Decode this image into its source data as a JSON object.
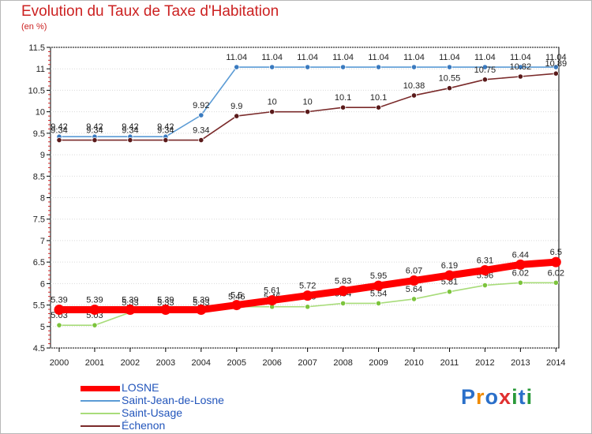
{
  "header": {
    "title": "Evolution du Taux de Taxe d'Habitation",
    "subtitle": "(en %)"
  },
  "logo": {
    "text": "Proxiti",
    "letters": [
      {
        "ch": "P",
        "color": "#2a6fc9"
      },
      {
        "ch": "r",
        "color": "#f08a00"
      },
      {
        "ch": "o",
        "color": "#2a6fc9"
      },
      {
        "ch": "x",
        "color": "#e03030"
      },
      {
        "ch": "i",
        "color": "#2a9a3a"
      },
      {
        "ch": "t",
        "color": "#2a6fc9"
      },
      {
        "ch": "i",
        "color": "#2a9a3a"
      }
    ]
  },
  "chart_data": {
    "type": "line",
    "title": "Evolution du Taux de Taxe d'Habitation",
    "subtitle": "(en %)",
    "ylim": [
      4.5,
      11.5
    ],
    "y_ticks": [
      "4.5",
      "5",
      "5.5",
      "6",
      "6.5",
      "7",
      "7.5",
      "8",
      "8.5",
      "9",
      "9.5",
      "10",
      "10.5",
      "11",
      "11.5"
    ],
    "categories": [
      "2000",
      "2001",
      "2002",
      "2003",
      "2004",
      "2005",
      "2006",
      "2007",
      "2008",
      "2009",
      "2010",
      "2011",
      "2012",
      "2013",
      "2014"
    ],
    "grid": "horizontal",
    "legend_position": "bottom-left",
    "series": [
      {
        "name": "Saint-Jean-de-Losne",
        "color": "#5b9bd5",
        "point_color": "#3a7abf",
        "labels": [
          "9.42",
          "9.42",
          "9.42",
          "9.42",
          "9.92",
          "11.04",
          "11.04",
          "11.04",
          "11.04",
          "11.04",
          "11.04",
          "11.04",
          "11.04",
          "11.04",
          "11.04"
        ],
        "values": [
          9.42,
          9.42,
          9.42,
          9.42,
          9.92,
          11.04,
          11.04,
          11.04,
          11.04,
          11.04,
          11.04,
          11.04,
          11.04,
          11.04,
          11.04
        ]
      },
      {
        "name": "Échenon",
        "color": "#7a2a2a",
        "point_color": "#5a1a1a",
        "labels": [
          "9.34",
          "9.34",
          "9.34",
          "9.34",
          "9.34",
          "9.9",
          "10",
          "10",
          "10.1",
          "10.1",
          "10.38",
          "10.55",
          "10.75",
          "10.82",
          "10.89"
        ],
        "values": [
          9.34,
          9.34,
          9.34,
          9.34,
          9.34,
          9.9,
          10,
          10,
          10.1,
          10.1,
          10.38,
          10.55,
          10.75,
          10.82,
          10.89
        ]
      },
      {
        "name": "Saint-Usage",
        "color": "#a8dc7a",
        "point_color": "#7cc43c",
        "labels": [
          "5.03",
          "5.03",
          "5.33",
          "5.33",
          "5.33",
          "5.46",
          "5.46",
          "5.46",
          "5.54",
          "5.54",
          "5.64",
          "5.81",
          "5.96",
          "6.02",
          "6.02"
        ],
        "values": [
          5.03,
          5.03,
          5.33,
          5.33,
          5.33,
          5.46,
          5.46,
          5.46,
          5.54,
          5.54,
          5.64,
          5.81,
          5.96,
          6.02,
          6.02
        ]
      },
      {
        "name": "LOSNE",
        "color": "#ff0000",
        "point_color": "#ff0000",
        "labels": [
          "5.39",
          "5.39",
          "5.39",
          "5.39",
          "5.39",
          "5.5",
          "5.61",
          "5.72",
          "5.83",
          "5.95",
          "6.07",
          "6.19",
          "6.31",
          "6.44",
          "6.5"
        ],
        "values": [
          5.39,
          5.39,
          5.39,
          5.39,
          5.39,
          5.5,
          5.61,
          5.72,
          5.83,
          5.95,
          6.07,
          6.19,
          6.31,
          6.44,
          6.5
        ]
      }
    ],
    "legend": [
      {
        "name": "LOSNE",
        "color": "#ff0000"
      },
      {
        "name": "Saint-Jean-de-Losne",
        "color": "#5b9bd5"
      },
      {
        "name": "Saint-Usage",
        "color": "#a8dc7a"
      },
      {
        "name": "Échenon",
        "color": "#7a2a2a"
      }
    ]
  }
}
